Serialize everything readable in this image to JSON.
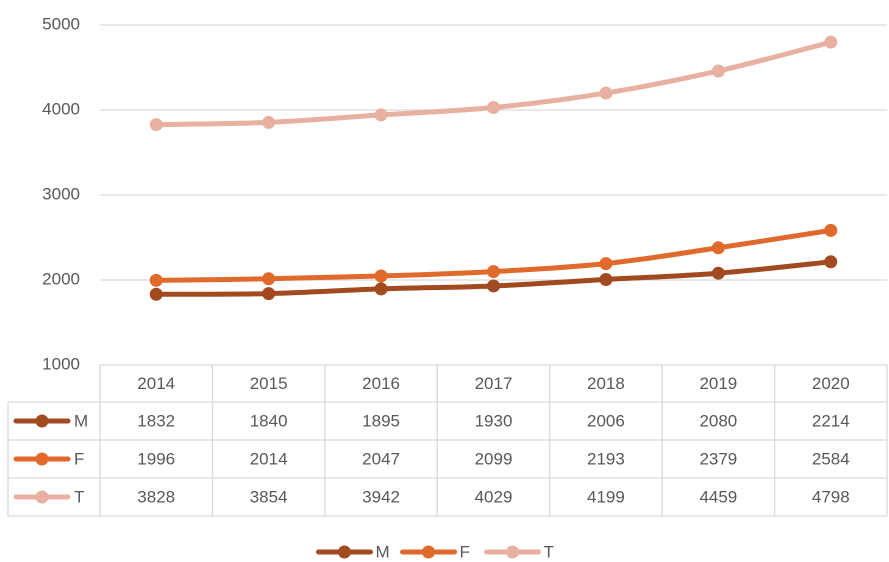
{
  "chart_data": {
    "type": "line",
    "categories": [
      "2014",
      "2015",
      "2016",
      "2017",
      "2018",
      "2019",
      "2020"
    ],
    "series": [
      {
        "name": "M",
        "color": "#a14a1f",
        "values": [
          1832,
          1840,
          1895,
          1930,
          2006,
          2080,
          2214
        ]
      },
      {
        "name": "F",
        "color": "#e06a2c",
        "values": [
          1996,
          2014,
          2047,
          2099,
          2193,
          2379,
          2584
        ]
      },
      {
        "name": "T",
        "color": "#e8b0a0",
        "values": [
          3828,
          3854,
          3942,
          4029,
          4199,
          4459,
          4798
        ]
      }
    ],
    "ylim": [
      1000,
      5000
    ],
    "yticks": [
      1000,
      2000,
      3000,
      4000,
      5000
    ],
    "grid": true,
    "data_table": true,
    "legend": "bottom"
  }
}
